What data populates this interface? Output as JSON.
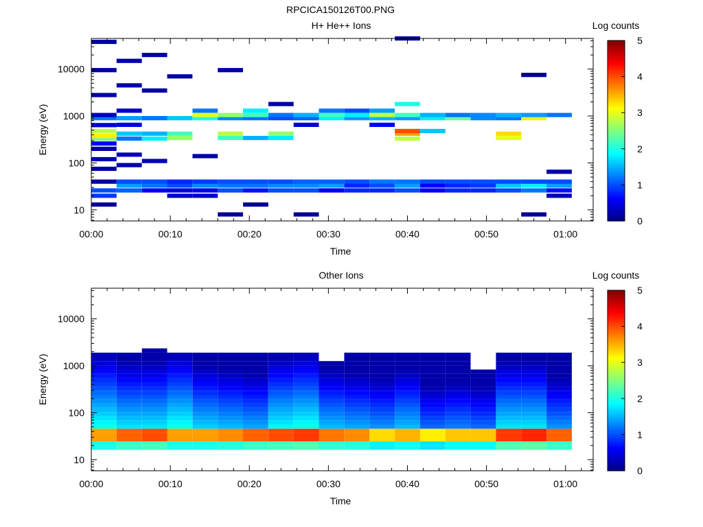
{
  "figure": {
    "title": "RPCICA150126T00.PNG"
  },
  "chart_data": [
    {
      "type": "heatmap",
      "title": "H+ He++ Ions",
      "xlabel": "Time",
      "ylabel": "Energy (eV)",
      "x_ticks": [
        "00:00",
        "00:10",
        "00:20",
        "00:30",
        "00:40",
        "00:50",
        "01:00"
      ],
      "x_tick_minutes": [
        0,
        10,
        20,
        30,
        40,
        50,
        60
      ],
      "xlim_minutes": [
        0,
        63.5
      ],
      "y_ticks": [
        10,
        100,
        1000,
        10000
      ],
      "y_tick_labels": [
        "10",
        "100",
        "1000",
        "10000"
      ],
      "ylim": [
        5.8,
        45000
      ],
      "y_scale": "log",
      "colorbar": {
        "label": "Log counts",
        "ticks": [
          0,
          1,
          2,
          3,
          4,
          5
        ],
        "range": [
          0,
          5
        ],
        "colormap": "jet",
        "position": "right"
      },
      "time_bin_minutes": 3.2,
      "cells": [
        {
          "t": 0,
          "e": 13,
          "v": 0.1
        },
        {
          "t": 0,
          "e": 20,
          "v": 0.9
        },
        {
          "t": 0,
          "e": 26,
          "v": 1.0
        },
        {
          "t": 0,
          "e": 40,
          "v": 0.2
        },
        {
          "t": 0,
          "e": 75,
          "v": 0.2
        },
        {
          "t": 0,
          "e": 120,
          "v": 0.3
        },
        {
          "t": 0,
          "e": 200,
          "v": 0.2
        },
        {
          "t": 0,
          "e": 260,
          "v": 0.6
        },
        {
          "t": 0,
          "e": 330,
          "v": 2.5
        },
        {
          "t": 0,
          "e": 380,
          "v": 3.2
        },
        {
          "t": 0,
          "e": 480,
          "v": 2.8
        },
        {
          "t": 0,
          "e": 640,
          "v": 0.4
        },
        {
          "t": 0,
          "e": 900,
          "v": 1.2
        },
        {
          "t": 0,
          "e": 1050,
          "v": 0.3
        },
        {
          "t": 0,
          "e": 2800,
          "v": 0.2
        },
        {
          "t": 0,
          "e": 9500,
          "v": 0.2
        },
        {
          "t": 0,
          "e": 38000,
          "v": 0.2
        },
        {
          "t": 3.2,
          "e": 26,
          "v": 1.1
        },
        {
          "t": 3.2,
          "e": 33,
          "v": 1.4
        },
        {
          "t": 3.2,
          "e": 40,
          "v": 1.0
        },
        {
          "t": 3.2,
          "e": 90,
          "v": 0.2
        },
        {
          "t": 3.2,
          "e": 150,
          "v": 0.3
        },
        {
          "t": 3.2,
          "e": 330,
          "v": 1.2
        },
        {
          "t": 3.2,
          "e": 420,
          "v": 1.6
        },
        {
          "t": 3.2,
          "e": 650,
          "v": 0.5
        },
        {
          "t": 3.2,
          "e": 900,
          "v": 1.4
        },
        {
          "t": 3.2,
          "e": 1300,
          "v": 0.3
        },
        {
          "t": 3.2,
          "e": 4500,
          "v": 0.2
        },
        {
          "t": 3.2,
          "e": 15000,
          "v": 0.2
        },
        {
          "t": 6.4,
          "e": 26,
          "v": 0.6
        },
        {
          "t": 6.4,
          "e": 33,
          "v": 1.2
        },
        {
          "t": 6.4,
          "e": 40,
          "v": 1.0
        },
        {
          "t": 6.4,
          "e": 110,
          "v": 0.3
        },
        {
          "t": 6.4,
          "e": 330,
          "v": 1.8
        },
        {
          "t": 6.4,
          "e": 420,
          "v": 1.5
        },
        {
          "t": 6.4,
          "e": 900,
          "v": 1.2
        },
        {
          "t": 6.4,
          "e": 3500,
          "v": 0.2
        },
        {
          "t": 6.4,
          "e": 20000,
          "v": 0.2
        },
        {
          "t": 9.6,
          "e": 20,
          "v": 0.4
        },
        {
          "t": 9.6,
          "e": 26,
          "v": 0.5
        },
        {
          "t": 9.6,
          "e": 33,
          "v": 1.0
        },
        {
          "t": 9.6,
          "e": 40,
          "v": 0.8
        },
        {
          "t": 9.6,
          "e": 340,
          "v": 2.6
        },
        {
          "t": 9.6,
          "e": 420,
          "v": 2.2
        },
        {
          "t": 9.6,
          "e": 900,
          "v": 1.6
        },
        {
          "t": 9.6,
          "e": 7000,
          "v": 0.2
        },
        {
          "t": 12.8,
          "e": 20,
          "v": 0.4
        },
        {
          "t": 12.8,
          "e": 26,
          "v": 0.5
        },
        {
          "t": 12.8,
          "e": 33,
          "v": 1.3
        },
        {
          "t": 12.8,
          "e": 40,
          "v": 0.9
        },
        {
          "t": 12.8,
          "e": 140,
          "v": 0.2
        },
        {
          "t": 12.8,
          "e": 900,
          "v": 2.0
        },
        {
          "t": 12.8,
          "e": 1050,
          "v": 3.0
        },
        {
          "t": 12.8,
          "e": 1300,
          "v": 1.2
        },
        {
          "t": 16,
          "e": 8,
          "v": 0.1
        },
        {
          "t": 16,
          "e": 26,
          "v": 1.0
        },
        {
          "t": 16,
          "e": 33,
          "v": 1.2
        },
        {
          "t": 16,
          "e": 40,
          "v": 1.0
        },
        {
          "t": 16,
          "e": 340,
          "v": 2.2
        },
        {
          "t": 16,
          "e": 420,
          "v": 2.8
        },
        {
          "t": 16,
          "e": 900,
          "v": 1.3
        },
        {
          "t": 16,
          "e": 1050,
          "v": 2.6
        },
        {
          "t": 16,
          "e": 9500,
          "v": 0.2
        },
        {
          "t": 19.2,
          "e": 13,
          "v": 0.1
        },
        {
          "t": 19.2,
          "e": 26,
          "v": 0.7
        },
        {
          "t": 19.2,
          "e": 33,
          "v": 1.2
        },
        {
          "t": 19.2,
          "e": 40,
          "v": 1.0
        },
        {
          "t": 19.2,
          "e": 340,
          "v": 1.5
        },
        {
          "t": 19.2,
          "e": 900,
          "v": 1.2
        },
        {
          "t": 19.2,
          "e": 1050,
          "v": 2.2
        },
        {
          "t": 19.2,
          "e": 1300,
          "v": 1.8
        },
        {
          "t": 22.4,
          "e": 26,
          "v": 1.0
        },
        {
          "t": 22.4,
          "e": 33,
          "v": 1.3
        },
        {
          "t": 22.4,
          "e": 40,
          "v": 1.0
        },
        {
          "t": 22.4,
          "e": 340,
          "v": 1.8
        },
        {
          "t": 22.4,
          "e": 420,
          "v": 2.6
        },
        {
          "t": 22.4,
          "e": 900,
          "v": 1.0
        },
        {
          "t": 22.4,
          "e": 1050,
          "v": 1.2
        },
        {
          "t": 22.4,
          "e": 1800,
          "v": 0.2
        },
        {
          "t": 25.6,
          "e": 8,
          "v": 0.1
        },
        {
          "t": 25.6,
          "e": 26,
          "v": 1.0
        },
        {
          "t": 25.6,
          "e": 33,
          "v": 1.3
        },
        {
          "t": 25.6,
          "e": 40,
          "v": 1.1
        },
        {
          "t": 25.6,
          "e": 650,
          "v": 0.4
        },
        {
          "t": 25.6,
          "e": 900,
          "v": 1.1
        },
        {
          "t": 25.6,
          "e": 1050,
          "v": 1.5
        },
        {
          "t": 28.8,
          "e": 26,
          "v": 0.6
        },
        {
          "t": 28.8,
          "e": 33,
          "v": 1.4
        },
        {
          "t": 28.8,
          "e": 40,
          "v": 1.1
        },
        {
          "t": 28.8,
          "e": 900,
          "v": 1.8
        },
        {
          "t": 28.8,
          "e": 1050,
          "v": 2.2
        },
        {
          "t": 28.8,
          "e": 1300,
          "v": 1.2
        },
        {
          "t": 32,
          "e": 26,
          "v": 0.8
        },
        {
          "t": 32,
          "e": 33,
          "v": 0.8
        },
        {
          "t": 32,
          "e": 40,
          "v": 1.0
        },
        {
          "t": 32,
          "e": 900,
          "v": 1.4
        },
        {
          "t": 32,
          "e": 1050,
          "v": 1.8
        },
        {
          "t": 32,
          "e": 1300,
          "v": 1.0
        },
        {
          "t": 35.2,
          "e": 26,
          "v": 0.8
        },
        {
          "t": 35.2,
          "e": 33,
          "v": 1.0
        },
        {
          "t": 35.2,
          "e": 40,
          "v": 1.2
        },
        {
          "t": 35.2,
          "e": 900,
          "v": 1.5
        },
        {
          "t": 35.2,
          "e": 1050,
          "v": 2.8
        },
        {
          "t": 35.2,
          "e": 1300,
          "v": 1.4
        },
        {
          "t": 35.2,
          "e": 650,
          "v": 0.6
        },
        {
          "t": 38.4,
          "e": 26,
          "v": 1.0
        },
        {
          "t": 38.4,
          "e": 33,
          "v": 1.4
        },
        {
          "t": 38.4,
          "e": 40,
          "v": 1.2
        },
        {
          "t": 38.4,
          "e": 330,
          "v": 2.8
        },
        {
          "t": 38.4,
          "e": 420,
          "v": 3.6
        },
        {
          "t": 38.4,
          "e": 480,
          "v": 4.0
        },
        {
          "t": 38.4,
          "e": 900,
          "v": 1.4
        },
        {
          "t": 38.4,
          "e": 1050,
          "v": 2.2
        },
        {
          "t": 38.4,
          "e": 1800,
          "v": 2.0
        },
        {
          "t": 38.4,
          "e": 45000,
          "v": 0.2
        },
        {
          "t": 41.6,
          "e": 26,
          "v": 0.6
        },
        {
          "t": 41.6,
          "e": 33,
          "v": 0.6
        },
        {
          "t": 41.6,
          "e": 40,
          "v": 1.0
        },
        {
          "t": 41.6,
          "e": 480,
          "v": 1.6
        },
        {
          "t": 41.6,
          "e": 900,
          "v": 1.8
        },
        {
          "t": 41.6,
          "e": 1050,
          "v": 1.5
        },
        {
          "t": 44.8,
          "e": 26,
          "v": 0.8
        },
        {
          "t": 44.8,
          "e": 33,
          "v": 0.8
        },
        {
          "t": 44.8,
          "e": 40,
          "v": 1.0
        },
        {
          "t": 44.8,
          "e": 900,
          "v": 2.4
        },
        {
          "t": 44.8,
          "e": 1050,
          "v": 1.2
        },
        {
          "t": 48,
          "e": 26,
          "v": 0.8
        },
        {
          "t": 48,
          "e": 33,
          "v": 0.9
        },
        {
          "t": 48,
          "e": 40,
          "v": 1.0
        },
        {
          "t": 48,
          "e": 900,
          "v": 1.3
        },
        {
          "t": 48,
          "e": 1050,
          "v": 1.3
        },
        {
          "t": 51.2,
          "e": 26,
          "v": 1.0
        },
        {
          "t": 51.2,
          "e": 33,
          "v": 1.6
        },
        {
          "t": 51.2,
          "e": 40,
          "v": 1.0
        },
        {
          "t": 51.2,
          "e": 340,
          "v": 3.0
        },
        {
          "t": 51.2,
          "e": 420,
          "v": 3.3
        },
        {
          "t": 51.2,
          "e": 900,
          "v": 1.2
        },
        {
          "t": 51.2,
          "e": 1050,
          "v": 1.5
        },
        {
          "t": 54.4,
          "e": 8,
          "v": 0.1
        },
        {
          "t": 54.4,
          "e": 26,
          "v": 1.2
        },
        {
          "t": 54.4,
          "e": 33,
          "v": 1.8
        },
        {
          "t": 54.4,
          "e": 40,
          "v": 1.0
        },
        {
          "t": 54.4,
          "e": 900,
          "v": 3.2
        },
        {
          "t": 54.4,
          "e": 1050,
          "v": 1.4
        },
        {
          "t": 54.4,
          "e": 7500,
          "v": 0.1
        },
        {
          "t": 57.6,
          "e": 20,
          "v": 0.3
        },
        {
          "t": 57.6,
          "e": 26,
          "v": 0.7
        },
        {
          "t": 57.6,
          "e": 33,
          "v": 1.4
        },
        {
          "t": 57.6,
          "e": 40,
          "v": 1.0
        },
        {
          "t": 57.6,
          "e": 65,
          "v": 0.2
        },
        {
          "t": 57.6,
          "e": 1050,
          "v": 1.2
        }
      ]
    },
    {
      "type": "heatmap",
      "title": "Other Ions",
      "xlabel": "Time",
      "ylabel": "Energy (eV)",
      "x_ticks": [
        "00:00",
        "00:10",
        "00:20",
        "00:30",
        "00:40",
        "00:50",
        "01:00"
      ],
      "x_tick_minutes": [
        0,
        10,
        20,
        30,
        40,
        50,
        60
      ],
      "xlim_minutes": [
        0,
        63.5
      ],
      "y_ticks": [
        10,
        100,
        1000,
        10000
      ],
      "y_tick_labels": [
        "10",
        "100",
        "1000",
        "10000"
      ],
      "ylim": [
        5.8,
        45000
      ],
      "y_scale": "log",
      "colorbar": {
        "label": "Log counts",
        "ticks": [
          0,
          1,
          2,
          3,
          4,
          5
        ],
        "range": [
          0,
          5
        ],
        "colormap": "jet",
        "position": "right"
      },
      "time_bin_minutes": 3.2,
      "profile_by_time": [
        {
          "t": 0,
          "peak": 3.6,
          "mid": 2.0,
          "top_e": 2000
        },
        {
          "t": 3.2,
          "peak": 3.9,
          "mid": 1.8,
          "top_e": 2000
        },
        {
          "t": 6.4,
          "peak": 4.0,
          "mid": 1.8,
          "top_e": 2200
        },
        {
          "t": 9.6,
          "peak": 3.6,
          "mid": 2.0,
          "top_e": 2000
        },
        {
          "t": 12.8,
          "peak": 3.6,
          "mid": 1.7,
          "top_e": 1900
        },
        {
          "t": 16,
          "peak": 3.7,
          "mid": 1.6,
          "top_e": 1900
        },
        {
          "t": 19.2,
          "peak": 3.9,
          "mid": 1.5,
          "top_e": 1900
        },
        {
          "t": 22.4,
          "peak": 4.0,
          "mid": 1.9,
          "top_e": 1900
        },
        {
          "t": 25.6,
          "peak": 4.1,
          "mid": 2.0,
          "top_e": 1900
        },
        {
          "t": 28.8,
          "peak": 3.8,
          "mid": 1.6,
          "top_e": 1300
        },
        {
          "t": 32,
          "peak": 3.7,
          "mid": 1.5,
          "top_e": 1900
        },
        {
          "t": 35.2,
          "peak": 3.3,
          "mid": 1.4,
          "top_e": 1900
        },
        {
          "t": 38.4,
          "peak": 3.5,
          "mid": 1.6,
          "top_e": 2100
        },
        {
          "t": 41.6,
          "peak": 3.2,
          "mid": 1.2,
          "top_e": 1900
        },
        {
          "t": 44.8,
          "peak": 3.4,
          "mid": 1.3,
          "top_e": 2100
        },
        {
          "t": 48,
          "peak": 3.4,
          "mid": 1.2,
          "top_e": 900
        },
        {
          "t": 51.2,
          "peak": 4.1,
          "mid": 1.8,
          "top_e": 1900
        },
        {
          "t": 54.4,
          "peak": 4.2,
          "mid": 1.8,
          "top_e": 1800
        },
        {
          "t": 57.6,
          "peak": 3.9,
          "mid": 1.4,
          "top_e": 1900
        }
      ]
    }
  ]
}
